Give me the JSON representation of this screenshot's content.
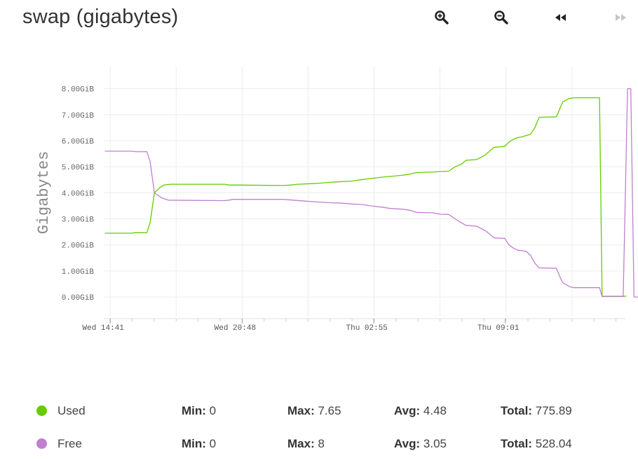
{
  "title": "swap (gigabytes)",
  "toolbar": {
    "zoom_in_icon": "zoom-in-icon",
    "zoom_out_icon": "zoom-out-icon",
    "back_icon": "rewind-icon",
    "forward_icon": "fast-forward-icon"
  },
  "chart_data": {
    "type": "line",
    "ylabel": "Gigabytes",
    "ylim": [
      -0.75,
      8.85
    ],
    "y_ticks": [
      0,
      1,
      2,
      3,
      4,
      5,
      6,
      7,
      8
    ],
    "y_tick_labels": [
      "0.00GiB",
      "1.00GiB",
      "2.00GiB",
      "3.00GiB",
      "4.00GiB",
      "5.00GiB",
      "6.00GiB",
      "7.00GiB",
      "8.00GiB"
    ],
    "x_ticks": [
      "Wed 14:41",
      "Wed 20:48",
      "Thu 02:55",
      "Thu 09:01"
    ],
    "x_tick_hours": [
      0,
      6.12,
      12.23,
      18.33
    ],
    "xlim_hours": [
      -0.3,
      23.9
    ],
    "grid": true,
    "series": [
      {
        "name": "Used",
        "color": "#66cc00",
        "points": [
          [
            -0.25,
            2.45
          ],
          [
            1.0,
            2.45
          ],
          [
            1.1,
            2.47
          ],
          [
            1.7,
            2.47
          ],
          [
            1.85,
            2.85
          ],
          [
            2.05,
            4.0
          ],
          [
            2.3,
            4.2
          ],
          [
            2.5,
            4.3
          ],
          [
            2.8,
            4.33
          ],
          [
            5.3,
            4.33
          ],
          [
            5.5,
            4.3
          ],
          [
            5.7,
            4.3
          ],
          [
            8.0,
            4.28
          ],
          [
            8.4,
            4.3
          ],
          [
            8.7,
            4.33
          ],
          [
            9.3,
            4.35
          ],
          [
            9.7,
            4.37
          ],
          [
            10.1,
            4.4
          ],
          [
            10.5,
            4.42
          ],
          [
            11.2,
            4.45
          ],
          [
            11.6,
            4.5
          ],
          [
            12.1,
            4.55
          ],
          [
            12.6,
            4.6
          ],
          [
            13.0,
            4.63
          ],
          [
            13.5,
            4.67
          ],
          [
            13.8,
            4.7
          ],
          [
            14.2,
            4.78
          ],
          [
            15.0,
            4.8
          ],
          [
            15.3,
            4.82
          ],
          [
            15.7,
            4.83
          ],
          [
            16.0,
            5.0
          ],
          [
            16.3,
            5.1
          ],
          [
            16.5,
            5.25
          ],
          [
            17.0,
            5.28
          ],
          [
            17.4,
            5.45
          ],
          [
            17.6,
            5.6
          ],
          [
            17.8,
            5.75
          ],
          [
            18.3,
            5.78
          ],
          [
            18.5,
            5.95
          ],
          [
            18.7,
            6.05
          ],
          [
            18.9,
            6.12
          ],
          [
            19.1,
            6.15
          ],
          [
            19.3,
            6.2
          ],
          [
            19.5,
            6.25
          ],
          [
            19.7,
            6.5
          ],
          [
            19.9,
            6.9
          ],
          [
            20.7,
            6.92
          ],
          [
            21.0,
            7.5
          ],
          [
            21.3,
            7.62
          ],
          [
            21.5,
            7.65
          ],
          [
            22.7,
            7.65
          ],
          [
            22.82,
            0.03
          ],
          [
            23.95,
            0.03
          ]
        ]
      },
      {
        "name": "Free",
        "color": "#c07fcf",
        "points": [
          [
            -0.25,
            5.6
          ],
          [
            1.0,
            5.6
          ],
          [
            1.2,
            5.58
          ],
          [
            1.7,
            5.58
          ],
          [
            1.85,
            5.2
          ],
          [
            2.05,
            4.0
          ],
          [
            2.4,
            3.8
          ],
          [
            2.7,
            3.72
          ],
          [
            5.3,
            3.7
          ],
          [
            5.5,
            3.72
          ],
          [
            5.7,
            3.75
          ],
          [
            8.0,
            3.75
          ],
          [
            8.5,
            3.72
          ],
          [
            9.1,
            3.68
          ],
          [
            9.6,
            3.65
          ],
          [
            10.2,
            3.62
          ],
          [
            10.8,
            3.6
          ],
          [
            11.2,
            3.57
          ],
          [
            11.7,
            3.55
          ],
          [
            12.1,
            3.5
          ],
          [
            12.6,
            3.45
          ],
          [
            13.0,
            3.4
          ],
          [
            13.6,
            3.37
          ],
          [
            13.9,
            3.33
          ],
          [
            14.2,
            3.25
          ],
          [
            15.0,
            3.23
          ],
          [
            15.3,
            3.18
          ],
          [
            15.7,
            3.17
          ],
          [
            16.0,
            3.0
          ],
          [
            16.2,
            2.9
          ],
          [
            16.5,
            2.75
          ],
          [
            17.0,
            2.72
          ],
          [
            17.4,
            2.55
          ],
          [
            17.6,
            2.42
          ],
          [
            17.8,
            2.27
          ],
          [
            18.3,
            2.25
          ],
          [
            18.5,
            2.0
          ],
          [
            18.7,
            1.88
          ],
          [
            18.9,
            1.8
          ],
          [
            19.1,
            1.78
          ],
          [
            19.3,
            1.75
          ],
          [
            19.5,
            1.6
          ],
          [
            19.7,
            1.3
          ],
          [
            19.9,
            1.12
          ],
          [
            20.7,
            1.1
          ],
          [
            20.9,
            0.7
          ],
          [
            21.0,
            0.55
          ],
          [
            21.3,
            0.4
          ],
          [
            21.5,
            0.36
          ],
          [
            22.7,
            0.36
          ],
          [
            22.82,
            0.02
          ],
          [
            23.8,
            0.02
          ],
          [
            24.0,
            8.0
          ],
          [
            24.15,
            8.0
          ],
          [
            24.3,
            0.0
          ],
          [
            24.5,
            0.0
          ]
        ]
      }
    ]
  },
  "legend": [
    {
      "name": "Used",
      "color": "#66cc00",
      "min_label": "Min:",
      "min": "0",
      "max_label": "Max:",
      "max": "7.65",
      "avg_label": "Avg:",
      "avg": "4.48",
      "total_label": "Total:",
      "total": "775.89"
    },
    {
      "name": "Free",
      "color": "#c07fcf",
      "min_label": "Min:",
      "min": "0",
      "max_label": "Max:",
      "max": "8",
      "avg_label": "Avg:",
      "avg": "3.05",
      "total_label": "Total:",
      "total": "528.04"
    }
  ]
}
